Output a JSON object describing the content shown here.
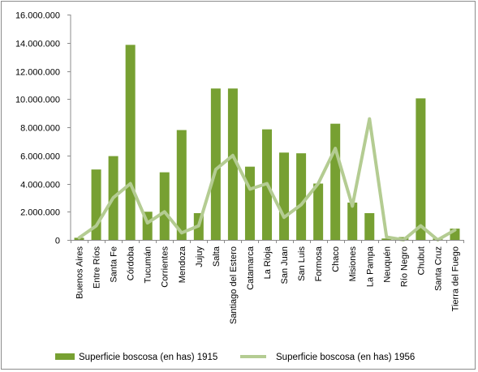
{
  "chart_data": {
    "type": "bar",
    "categories": [
      "Buenos Aires",
      "Entre Ríos",
      "Santa Fe",
      "Córdoba",
      "Tucumán",
      "Corrientes",
      "Mendoza",
      "Jujuy",
      "Salta",
      "Santiago del Estero",
      "Catamarca",
      "La Rioja",
      "San Juan",
      "San Luis",
      "Formosa",
      "Chaco",
      "Misiones",
      "La Pampa",
      "Neuquén",
      "Río Negro",
      "Chubut",
      "Santa Cruz",
      "Tierra del Fuego"
    ],
    "series": [
      {
        "name": "Superficie boscosa (en has) 1915",
        "type": "bar",
        "color": "#77a032",
        "values": [
          150000,
          5000000,
          5950000,
          13850000,
          2000000,
          4800000,
          7800000,
          1900000,
          10750000,
          10750000,
          5200000,
          7850000,
          6200000,
          6150000,
          4000000,
          8250000,
          2650000,
          1900000,
          100000,
          200000,
          10050000,
          100000,
          800000
        ]
      },
      {
        "name": "Superficie boscosa (en has) 1956",
        "type": "line",
        "color": "#b4cc92",
        "values": [
          150000,
          1000000,
          3000000,
          4000000,
          1200000,
          2000000,
          500000,
          1000000,
          5000000,
          6000000,
          3600000,
          4000000,
          1600000,
          2500000,
          4000000,
          6500000,
          2400000,
          8600000,
          200000,
          0,
          1000000,
          0,
          700000
        ]
      }
    ],
    "y_ticks": [
      "0",
      "2.000.000",
      "4.000.000",
      "6.000.000",
      "8.000.000",
      "10.000.000",
      "12.000.000",
      "14.000.000",
      "16.000.000"
    ],
    "ylim": [
      0,
      16000000
    ],
    "grid": false,
    "legend_position": "bottom"
  }
}
